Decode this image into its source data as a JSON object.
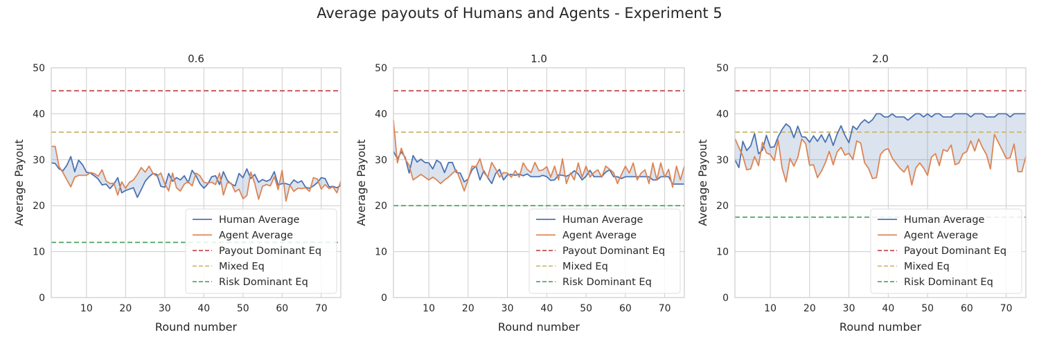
{
  "figure_title": "Average payouts of Humans and Agents - Experiment 5",
  "colors": {
    "human": "#4c72b0",
    "agent": "#dd8452",
    "payout_eq": "#c44e52",
    "mixed_eq": "#ccb974",
    "risk_eq": "#55a868",
    "fill": "#4c72b0",
    "grid": "#cccccc",
    "frame": "#cccccc"
  },
  "chart_data": [
    {
      "type": "line",
      "title": "0.6",
      "xlabel": "Round number",
      "ylabel": "Average Payout",
      "xlim": [
        1,
        75
      ],
      "ylim": [
        0,
        50
      ],
      "xticks": [
        10,
        20,
        30,
        40,
        50,
        60,
        70
      ],
      "yticks": [
        0,
        10,
        20,
        30,
        40,
        50
      ],
      "grid": true,
      "legend_position": "lower-right",
      "fill_between": true,
      "x": [
        1,
        2,
        3,
        4,
        5,
        6,
        7,
        8,
        9,
        10,
        11,
        12,
        13,
        14,
        15,
        16,
        17,
        18,
        19,
        20,
        21,
        22,
        23,
        24,
        25,
        26,
        27,
        28,
        29,
        30,
        31,
        32,
        33,
        34,
        35,
        36,
        37,
        38,
        39,
        40,
        41,
        42,
        43,
        44,
        45,
        46,
        47,
        48,
        49,
        50,
        51,
        52,
        53,
        54,
        55,
        56,
        57,
        58,
        59,
        60,
        61,
        62,
        63,
        64,
        65,
        66,
        67,
        68,
        69,
        70,
        71,
        72,
        73,
        74,
        75
      ],
      "series": [
        {
          "name": "Human Average",
          "color_key": "human",
          "values": [
            29.3,
            29.2,
            28,
            27.6,
            28.8,
            30.7,
            27.4,
            29.9,
            28.9,
            27.3,
            27.1,
            26.5,
            25.8,
            24.5,
            24.7,
            23.7,
            24.7,
            26.1,
            22.8,
            23.3,
            23.6,
            23.9,
            21.8,
            23.5,
            25.3,
            26.3,
            27,
            26.8,
            24.2,
            24,
            27,
            25.3,
            26.1,
            25.6,
            26.5,
            25,
            27.7,
            26.5,
            24.8,
            23.8,
            24.7,
            26.3,
            26.5,
            24.6,
            27.4,
            25.5,
            24.7,
            24.3,
            27,
            26.1,
            28,
            25.9,
            26.8,
            25.1,
            25.7,
            25.3,
            25.7,
            27.4,
            24.5,
            24.8,
            24.8,
            24.5,
            25.6,
            25,
            25.4,
            24,
            23.8,
            24.3,
            25,
            26.1,
            25.9,
            24.1,
            24.2,
            23.9,
            24.4
          ]
        },
        {
          "name": "Agent Average",
          "color_key": "agent",
          "values": [
            32.9,
            32.9,
            28.5,
            27.2,
            25.6,
            24.1,
            26.2,
            26.6,
            26.6,
            26.6,
            27.2,
            27,
            26.4,
            27.8,
            25.4,
            24.8,
            24.9,
            22.3,
            25.2,
            23.8,
            25.1,
            25.6,
            26.8,
            28.3,
            27.3,
            28.6,
            27,
            26.4,
            27.1,
            24.8,
            23.2,
            27.1,
            23.9,
            23.2,
            24.7,
            25.2,
            24.3,
            27.1,
            26.5,
            25.1,
            24.9,
            25.1,
            24.6,
            27.1,
            22.3,
            25,
            24.9,
            23,
            23.6,
            21.5,
            22.2,
            27.3,
            24.9,
            21.4,
            24.2,
            24.6,
            24.3,
            26.3,
            23.5,
            27.7,
            21,
            24.5,
            23.1,
            23.8,
            23.7,
            23.9,
            23.1,
            26.1,
            25.8,
            23.6,
            24.6,
            23.7,
            24.1,
            22.8,
            25.3
          ]
        }
      ],
      "reference_lines": [
        {
          "name": "Payout Dominant Eq",
          "color_key": "payout_eq",
          "y": 45
        },
        {
          "name": "Mixed Eq",
          "color_key": "mixed_eq",
          "y": 36
        },
        {
          "name": "Risk Dominant Eq",
          "color_key": "risk_eq",
          "y": 12
        }
      ]
    },
    {
      "type": "line",
      "title": "1.0",
      "xlabel": "Round number",
      "ylabel": "Average Payout",
      "xlim": [
        1,
        75
      ],
      "ylim": [
        0,
        50
      ],
      "xticks": [
        10,
        20,
        30,
        40,
        50,
        60,
        70
      ],
      "yticks": [
        0,
        10,
        20,
        30,
        40,
        50
      ],
      "grid": true,
      "legend_position": "lower-right",
      "fill_between": true,
      "x": [
        1,
        2,
        3,
        4,
        5,
        6,
        7,
        8,
        9,
        10,
        11,
        12,
        13,
        14,
        15,
        16,
        17,
        18,
        19,
        20,
        21,
        22,
        23,
        24,
        25,
        26,
        27,
        28,
        29,
        30,
        31,
        32,
        33,
        34,
        35,
        36,
        37,
        38,
        39,
        40,
        41,
        42,
        43,
        44,
        45,
        46,
        47,
        48,
        49,
        50,
        51,
        52,
        53,
        54,
        55,
        56,
        57,
        58,
        59,
        60,
        61,
        62,
        63,
        64,
        65,
        66,
        67,
        68,
        69,
        70,
        71,
        72,
        73,
        74,
        75
      ],
      "series": [
        {
          "name": "Human Average",
          "color_key": "human",
          "values": [
            31.8,
            30.2,
            31.7,
            30.5,
            27.1,
            30.9,
            29.5,
            30.1,
            29.4,
            29.3,
            28,
            29.9,
            29.3,
            27.2,
            29.4,
            29.4,
            27.2,
            27.1,
            25.2,
            25.8,
            27.8,
            28.6,
            25.6,
            27.6,
            26.1,
            24.8,
            27,
            27.9,
            25.6,
            26.7,
            26.8,
            26.6,
            26.9,
            26.5,
            26.9,
            26.3,
            26.3,
            26.3,
            26.6,
            26.3,
            25.5,
            25.6,
            26.7,
            26.6,
            26.4,
            26.8,
            27.6,
            26.9,
            25.6,
            26.4,
            27.7,
            26.3,
            26.3,
            26.3,
            27.3,
            27.8,
            26.3,
            26.3,
            25.9,
            26.3,
            26.3,
            26.3,
            26.3,
            26.3,
            26.3,
            26.3,
            25.6,
            25.6,
            26.3,
            26.3,
            26.3,
            24.7,
            24.7,
            24.7,
            24.7
          ]
        },
        {
          "name": "Agent Average",
          "color_key": "agent",
          "values": [
            38.6,
            29.3,
            32.5,
            30.1,
            28.8,
            25.6,
            26.2,
            26.8,
            26.2,
            25.6,
            26.2,
            25.6,
            24.8,
            25.6,
            26.2,
            27,
            27.8,
            25.6,
            23.2,
            25.6,
            28.6,
            28.5,
            30.2,
            27.2,
            26.2,
            29.4,
            28,
            26.2,
            27.2,
            27.1,
            26.2,
            27.6,
            26.2,
            29.3,
            27.9,
            27.2,
            29.4,
            27.6,
            27.8,
            28.5,
            26.2,
            28.6,
            25.6,
            30.2,
            24.8,
            27.1,
            25.6,
            29.3,
            26.2,
            28.6,
            26.2,
            27.2,
            27.8,
            26.2,
            28.6,
            27.9,
            27.2,
            24.8,
            26.8,
            28.6,
            27.1,
            29.3,
            25.6,
            27.1,
            27.8,
            24.8,
            29.3,
            25.6,
            29.3,
            26.2,
            27.9,
            24,
            28.6,
            25.6,
            28.6
          ]
        }
      ],
      "reference_lines": [
        {
          "name": "Payout Dominant Eq",
          "color_key": "payout_eq",
          "y": 45
        },
        {
          "name": "Mixed Eq",
          "color_key": "mixed_eq",
          "y": 36
        },
        {
          "name": "Risk Dominant Eq",
          "color_key": "risk_eq",
          "y": 20
        }
      ]
    },
    {
      "type": "line",
      "title": "2.0",
      "xlabel": "Round number",
      "ylabel": "Average Payout",
      "xlim": [
        1,
        75
      ],
      "ylim": [
        0,
        50
      ],
      "xticks": [
        10,
        20,
        30,
        40,
        50,
        60,
        70
      ],
      "yticks": [
        0,
        10,
        20,
        30,
        40,
        50
      ],
      "grid": true,
      "legend_position": "lower-right",
      "fill_between": true,
      "x": [
        1,
        2,
        3,
        4,
        5,
        6,
        7,
        8,
        9,
        10,
        11,
        12,
        13,
        14,
        15,
        16,
        17,
        18,
        19,
        20,
        21,
        22,
        23,
        24,
        25,
        26,
        27,
        28,
        29,
        30,
        31,
        32,
        33,
        34,
        35,
        36,
        37,
        38,
        39,
        40,
        41,
        42,
        43,
        44,
        45,
        46,
        47,
        48,
        49,
        50,
        51,
        52,
        53,
        54,
        55,
        56,
        57,
        58,
        59,
        60,
        61,
        62,
        63,
        64,
        65,
        66,
        67,
        68,
        69,
        70,
        71,
        72,
        73,
        74,
        75
      ],
      "series": [
        {
          "name": "Human Average",
          "color_key": "human",
          "values": [
            30,
            28.3,
            34,
            32,
            33,
            35.7,
            31.3,
            32.1,
            35.3,
            32.7,
            32.8,
            35,
            36.6,
            37.8,
            37.1,
            34.8,
            37.3,
            35,
            34.9,
            33.8,
            35.2,
            34,
            35.4,
            33.8,
            35.7,
            33.1,
            35.6,
            37.4,
            35.3,
            33.7,
            37.3,
            36.6,
            37.9,
            38.7,
            38,
            38.7,
            40,
            40,
            39.3,
            39.3,
            40,
            39.3,
            39.3,
            39.3,
            38.6,
            39.3,
            40,
            40,
            39.3,
            40,
            39.3,
            40,
            40,
            39.3,
            39.3,
            39.3,
            40,
            40,
            40,
            40,
            39.3,
            40,
            40,
            40,
            39.3,
            39.3,
            39.3,
            40,
            40,
            40,
            39.3,
            40,
            40,
            40,
            40
          ]
        },
        {
          "name": "Agent Average",
          "color_key": "agent",
          "values": [
            34.6,
            32.7,
            30.8,
            27.8,
            28,
            30.7,
            28.7,
            33.8,
            31.5,
            31.1,
            29.8,
            34.3,
            28.2,
            25.2,
            30.3,
            28.6,
            30.5,
            34.5,
            33.5,
            28.8,
            28.9,
            26.1,
            27.5,
            29.3,
            31.8,
            28.9,
            31.7,
            32.7,
            31,
            31.4,
            30,
            34.1,
            33.6,
            29.3,
            28.1,
            25.9,
            26.1,
            31.1,
            32.1,
            32.4,
            30.4,
            29.2,
            28.1,
            27.3,
            28.7,
            24.5,
            28.2,
            29.3,
            28.2,
            26.6,
            30.6,
            31.3,
            28.7,
            32.2,
            31.8,
            33.2,
            28.9,
            29.3,
            31.3,
            31.8,
            34.1,
            31.9,
            34.5,
            32.6,
            31.1,
            28,
            35.5,
            33.8,
            32.1,
            30.3,
            30.4,
            33.4,
            27.4,
            27.4,
            30.7
          ]
        }
      ],
      "reference_lines": [
        {
          "name": "Payout Dominant Eq",
          "color_key": "payout_eq",
          "y": 45
        },
        {
          "name": "Mixed Eq",
          "color_key": "mixed_eq",
          "y": 36
        },
        {
          "name": "Risk Dominant Eq",
          "color_key": "risk_eq",
          "y": 17.5
        }
      ]
    }
  ]
}
